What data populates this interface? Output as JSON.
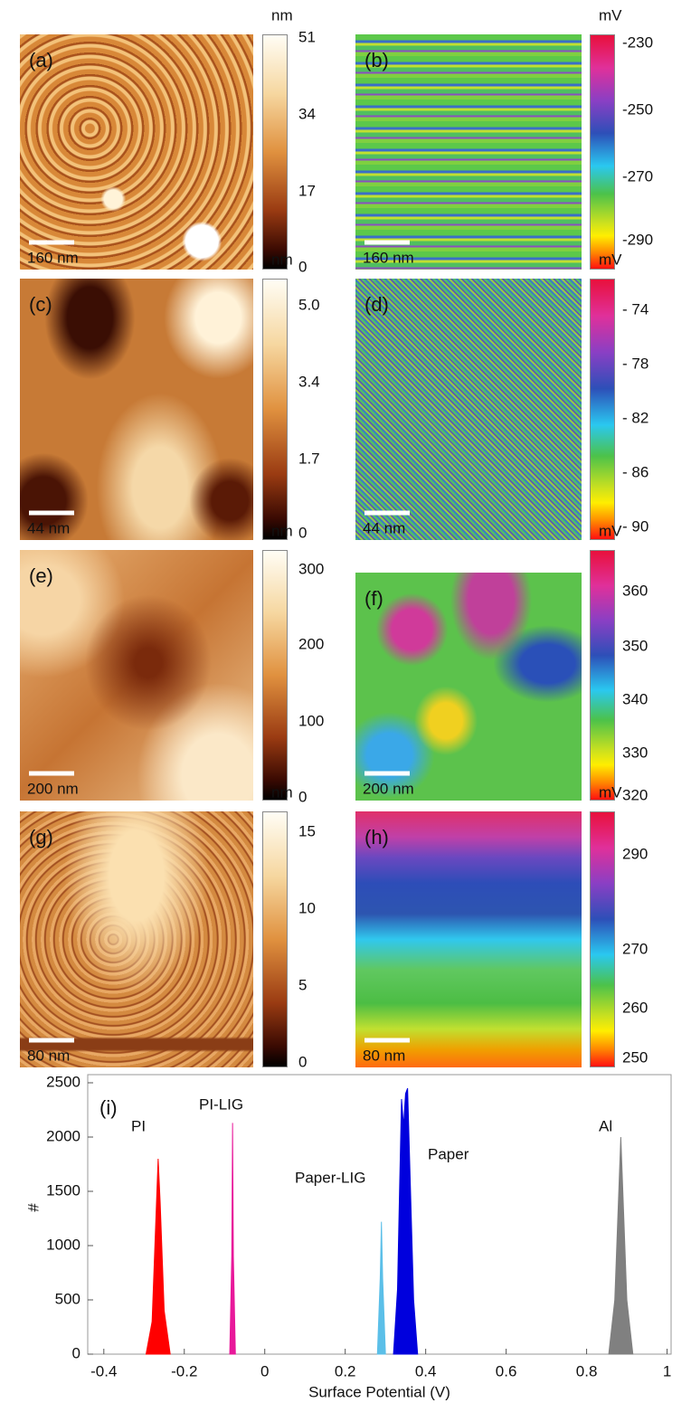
{
  "panels": [
    {
      "label": "(a)",
      "scale_bar": "160 nm",
      "unit": "nm",
      "ticks": [
        "51",
        "34",
        "17",
        "0"
      ]
    },
    {
      "label": "(b)",
      "scale_bar": "160 nm",
      "unit": "mV",
      "ticks": [
        "-230",
        "-250",
        "-270",
        "-290"
      ]
    },
    {
      "label": "(c)",
      "scale_bar": "44 nm",
      "unit": "nm",
      "ticks": [
        "5.0",
        "3.4",
        "1.7",
        "0"
      ]
    },
    {
      "label": "(d)",
      "scale_bar": "44 nm",
      "unit": "mV",
      "ticks": [
        "- 74",
        "- 78",
        "- 82",
        "- 86",
        "- 90"
      ]
    },
    {
      "label": "(e)",
      "scale_bar": "200 nm",
      "unit": "nm",
      "ticks": [
        "300",
        "200",
        "100",
        "0"
      ]
    },
    {
      "label": "(f)",
      "scale_bar": "200 nm",
      "unit": "mV",
      "ticks": [
        "360",
        "350",
        "340",
        "330",
        "320"
      ]
    },
    {
      "label": "(g)",
      "scale_bar": "80 nm",
      "unit": "nm",
      "ticks": [
        "15",
        "10",
        "5",
        "0"
      ]
    },
    {
      "label": "(h)",
      "scale_bar": "80 nm",
      "unit": "mV",
      "ticks": [
        "290",
        "270",
        "260",
        "250"
      ]
    }
  ],
  "chart_data": {
    "type": "area",
    "panel_label": "(i)",
    "x_label": "Surface Potential (V)",
    "y_label": "#",
    "xlim": [
      -0.44,
      1.01
    ],
    "ylim": [
      0,
      2575
    ],
    "xticks": [
      -0.4,
      -0.2,
      0,
      0.2,
      0.4,
      0.6,
      0.8,
      1
    ],
    "yticks": [
      0,
      500,
      1000,
      1500,
      2000,
      2500
    ],
    "series": [
      {
        "name": "PI",
        "color": "#ff0000",
        "x": [
          -0.295,
          -0.28,
          -0.27,
          -0.265,
          -0.26,
          -0.25,
          -0.235
        ],
        "values": [
          0,
          300,
          1300,
          1800,
          1400,
          400,
          0
        ]
      },
      {
        "name": "PI-LIG",
        "color": "#e8189a",
        "x": [
          -0.087,
          -0.082,
          -0.08,
          -0.078,
          -0.073
        ],
        "values": [
          0,
          900,
          2130,
          900,
          0
        ]
      },
      {
        "name": "Paper-LIG",
        "color": "#5bbfe8",
        "x": [
          0.28,
          0.287,
          0.29,
          0.293,
          0.3
        ],
        "values": [
          0,
          700,
          1220,
          700,
          0
        ]
      },
      {
        "name": "Paper",
        "color": "#0000dd",
        "x": [
          0.32,
          0.33,
          0.335,
          0.34,
          0.345,
          0.35,
          0.355,
          0.36,
          0.37,
          0.38
        ],
        "values": [
          0,
          600,
          1500,
          2350,
          2100,
          2400,
          2450,
          1800,
          500,
          0
        ]
      },
      {
        "name": "Al",
        "color": "#808080",
        "x": [
          0.855,
          0.87,
          0.88,
          0.885,
          0.89,
          0.9,
          0.915
        ],
        "values": [
          0,
          500,
          1500,
          2000,
          1500,
          500,
          0
        ]
      }
    ]
  }
}
